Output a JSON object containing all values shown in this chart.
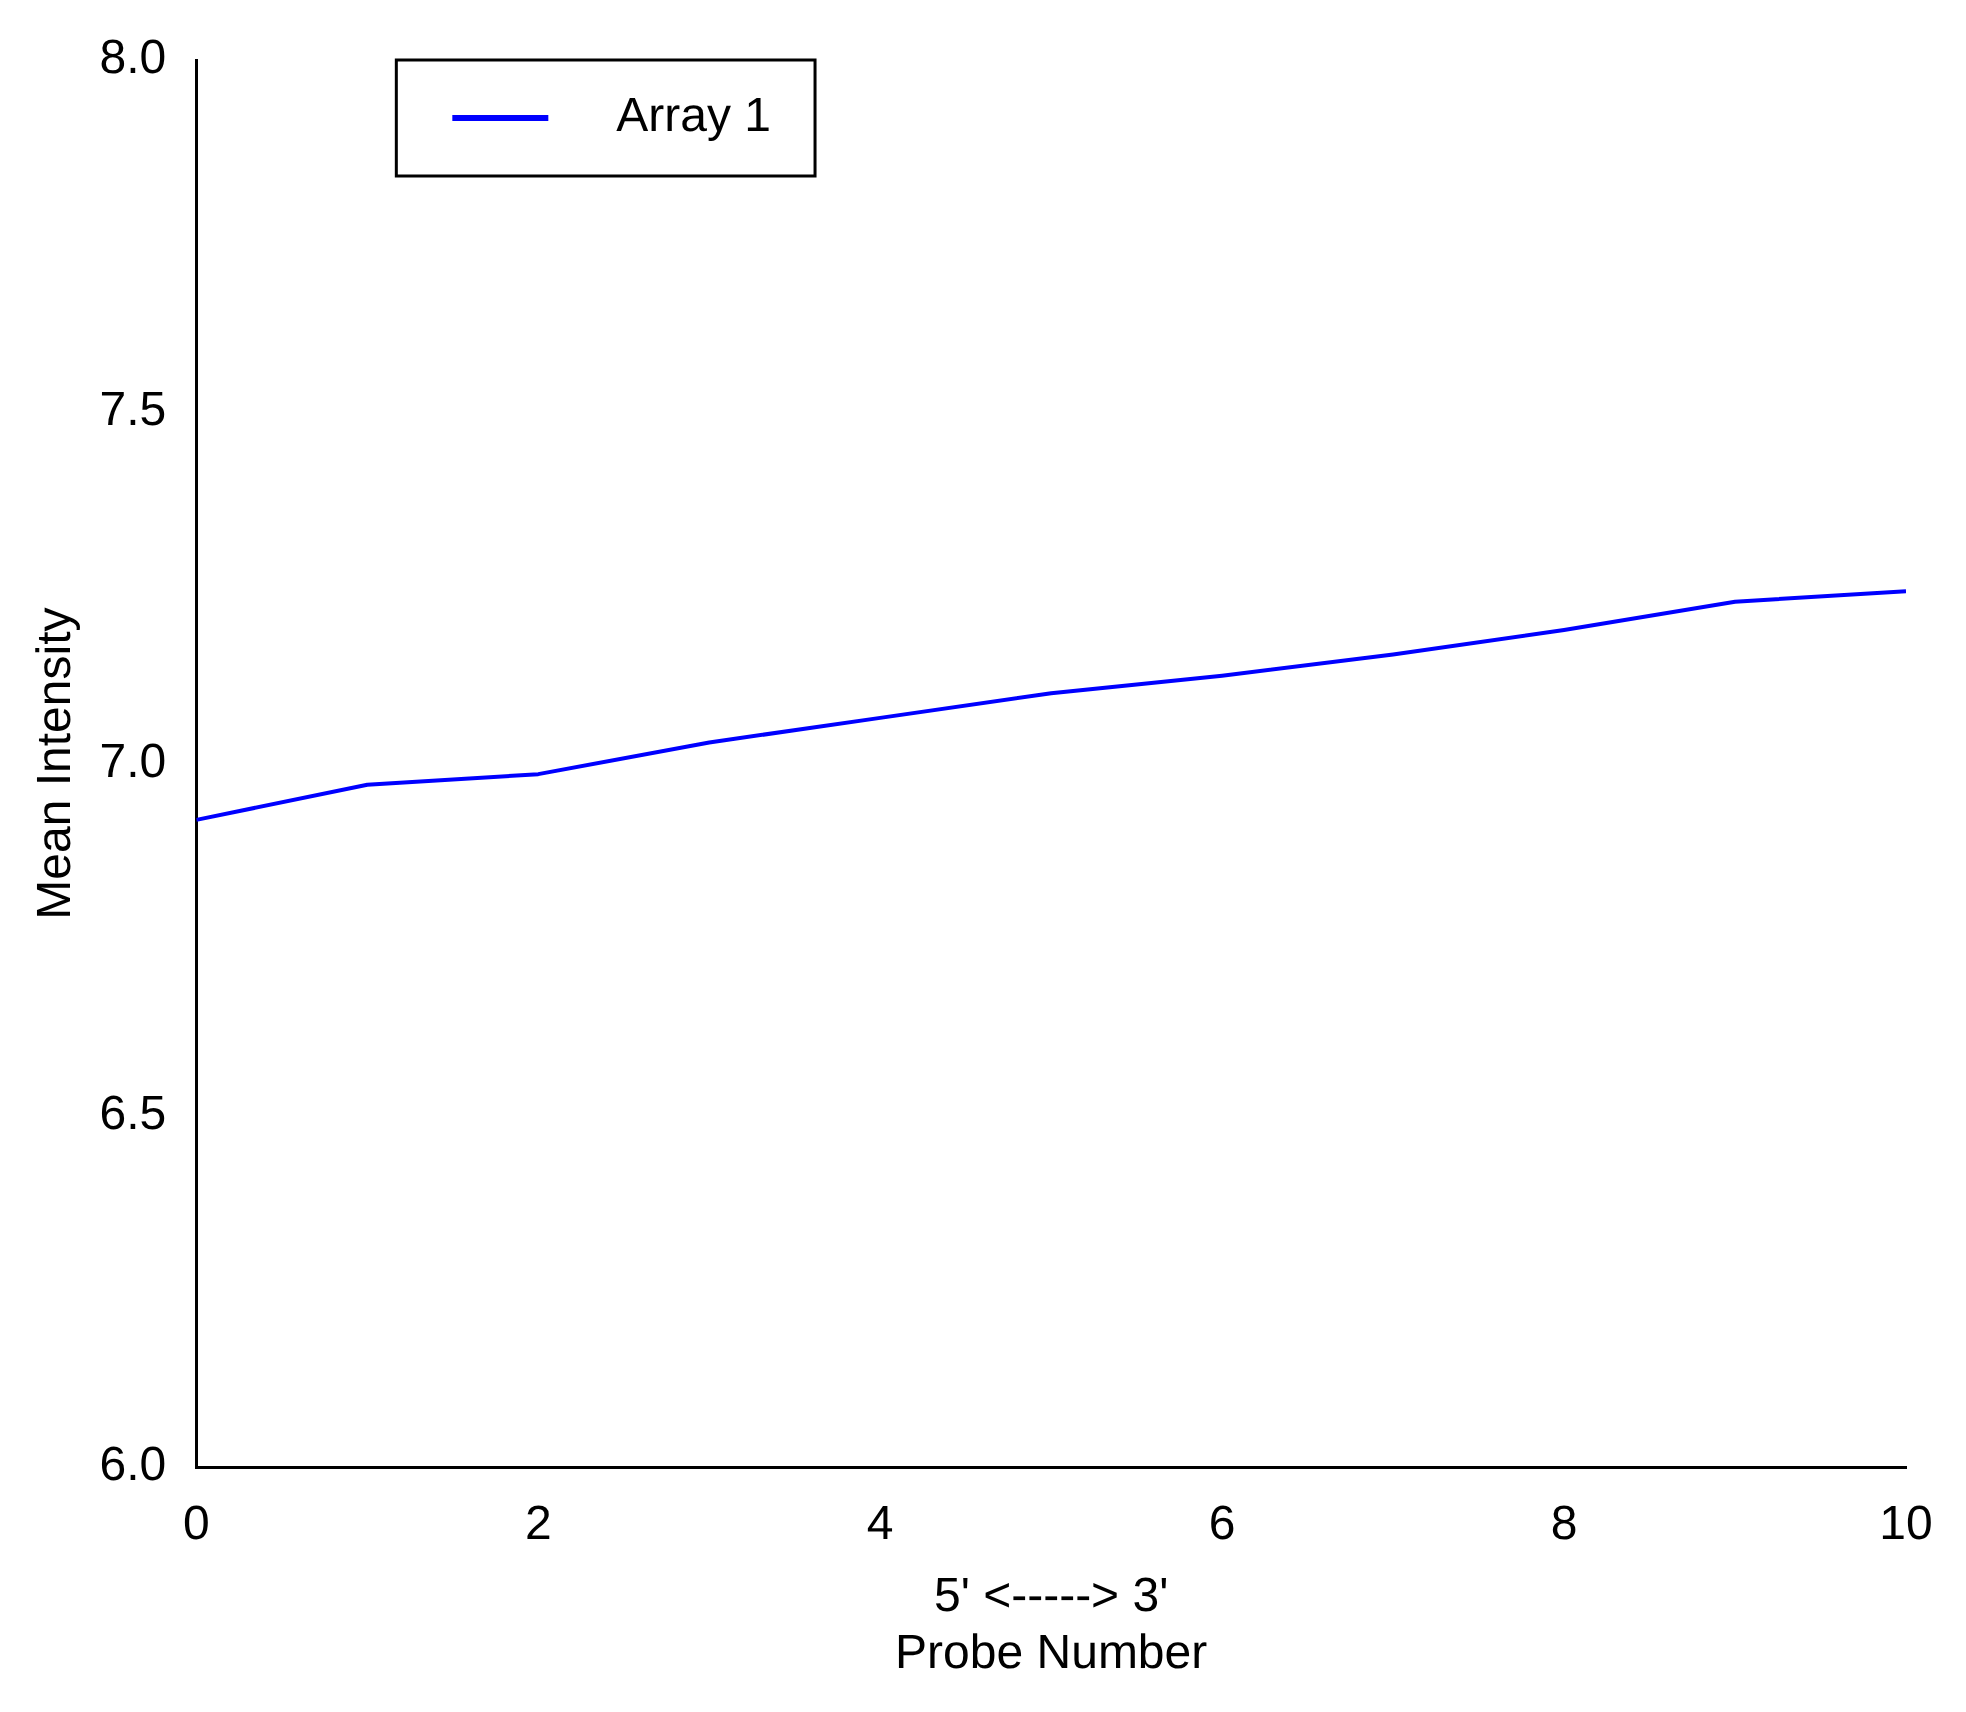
{
  "chart_data": {
    "type": "line",
    "xlabel": "5' <-----> 3'\nProbe Number",
    "ylabel": "Mean Intensity",
    "x": [
      0,
      1,
      2,
      3,
      4,
      5,
      6,
      7,
      8,
      9,
      10
    ],
    "series": [
      {
        "name": "Array 1",
        "color": "#0000ff",
        "values": [
          6.92,
          6.97,
          6.985,
          7.03,
          7.065,
          7.1,
          7.125,
          7.155,
          7.19,
          7.23,
          7.245
        ]
      }
    ],
    "xlim": [
      0,
      10
    ],
    "xticks": [
      0,
      2,
      4,
      6,
      8,
      10
    ],
    "ylim": [
      6,
      8
    ],
    "yticks": [
      {
        "value": 6,
        "label": "6.0"
      },
      6.5,
      {
        "value": 7,
        "label": "7.0"
      },
      7.5,
      {
        "value": 8,
        "label": "8.0"
      }
    ],
    "grid": false,
    "legend": "top left",
    "marker": "none",
    "line_style": "solid"
  }
}
